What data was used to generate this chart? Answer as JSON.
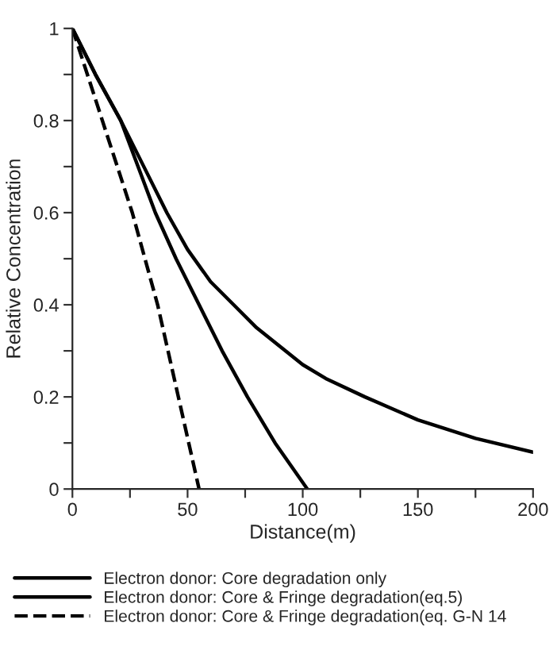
{
  "chart_data": {
    "type": "line",
    "xlabel": "Distance(m)",
    "ylabel": "Relative Concentration",
    "xlim": [
      0,
      200
    ],
    "ylim": [
      0,
      1
    ],
    "xticks": [
      0,
      {
        "value": 25,
        "label": null
      },
      50,
      {
        "value": 75,
        "label": null
      },
      100,
      {
        "value": 125,
        "label": null
      },
      150,
      {
        "value": 175,
        "label": null
      },
      200
    ],
    "yticks": [
      0,
      {
        "value": 0.1,
        "label": null
      },
      {
        "value": 0.2,
        "label": "0.2"
      },
      {
        "value": 0.3,
        "label": null
      },
      {
        "value": 0.4,
        "label": "0.4"
      },
      {
        "value": 0.5,
        "label": null
      },
      {
        "value": 0.6,
        "label": "0.6"
      },
      {
        "value": 0.7,
        "label": null
      },
      {
        "value": 0.8,
        "label": "0.8"
      },
      {
        "value": 0.9,
        "label": null
      },
      1
    ],
    "grid": false,
    "legend": "bottom",
    "marker": "none",
    "series": [
      {
        "name": "Electron donor: Core degradation only",
        "color": "#000000",
        "line_style": "solid",
        "x": [
          0,
          10,
          21,
          30,
          41,
          50,
          60,
          70,
          80,
          90,
          100,
          110,
          127,
          150,
          175,
          200
        ],
        "values": [
          1,
          0.9,
          0.8,
          0.71,
          0.6,
          0.52,
          0.45,
          0.4,
          0.35,
          0.31,
          0.27,
          0.24,
          0.2,
          0.15,
          0.11,
          0.08
        ]
      },
      {
        "name": "Electron donor: Core & Fringe degradation(eq.5)",
        "color": "#000000",
        "line_style": "solid",
        "x": [
          0,
          10,
          21,
          30,
          36,
          45,
          55,
          65,
          76,
          88,
          95,
          102
        ],
        "values": [
          1,
          0.9,
          0.8,
          0.68,
          0.6,
          0.5,
          0.4,
          0.3,
          0.2,
          0.1,
          0.05,
          0
        ]
      },
      {
        "name": "Electron donor: Core & Fringe degradation(eq. G-N 14",
        "color": "#000000",
        "line_style": "dashed",
        "x": [
          0,
          13,
          26,
          37,
          46,
          55
        ],
        "values": [
          1,
          0.8,
          0.6,
          0.4,
          0.2,
          0
        ]
      }
    ]
  }
}
